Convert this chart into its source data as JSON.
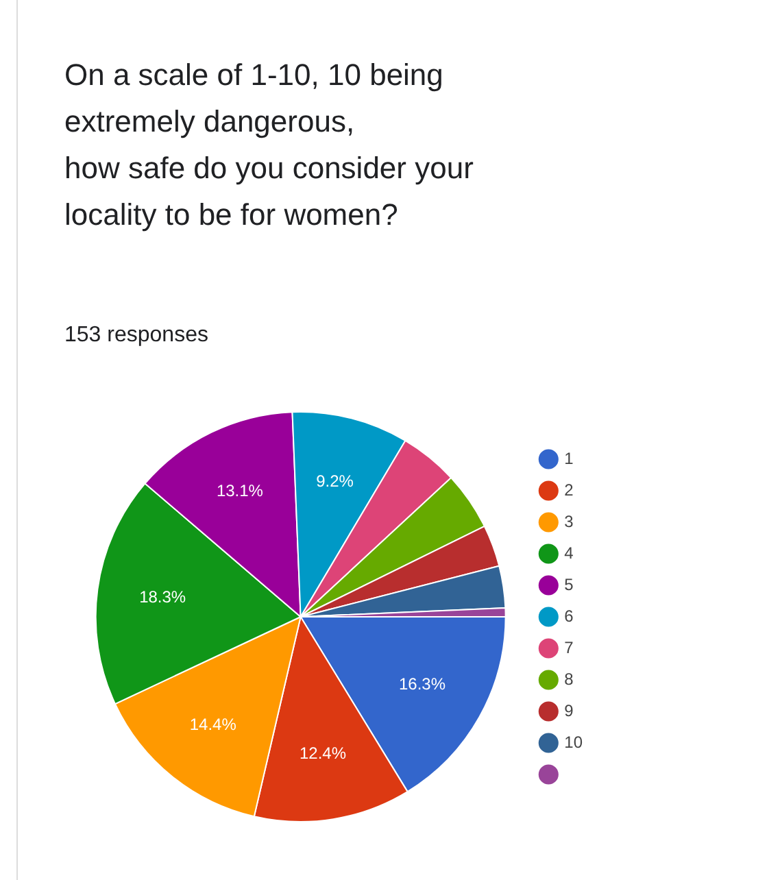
{
  "chart_data": {
    "type": "pie",
    "title": "On a scale of 1-10, 10 being extremely dangerous,\n how safe do you consider your locality to be for women?",
    "subtitle": "153 responses",
    "categories": [
      "1",
      "2",
      "3",
      "4",
      "5",
      "6",
      "7",
      "8",
      "9",
      "10",
      null
    ],
    "values": [
      16.3,
      12.4,
      14.4,
      18.3,
      13.1,
      9.2,
      4.6,
      4.6,
      3.3,
      3.3,
      0.7
    ],
    "colors": [
      "#3366cc",
      "#dc3912",
      "#ff9900",
      "#109618",
      "#990099",
      "#0099c6",
      "#dd4477",
      "#66aa00",
      "#b82e2e",
      "#316395",
      "#994499"
    ],
    "value_labels": [
      "16.3%",
      "12.4%",
      "14.4%",
      "18.3%",
      "13.1%",
      "9.2%",
      null,
      null,
      null,
      null,
      null
    ],
    "legend": "right"
  }
}
